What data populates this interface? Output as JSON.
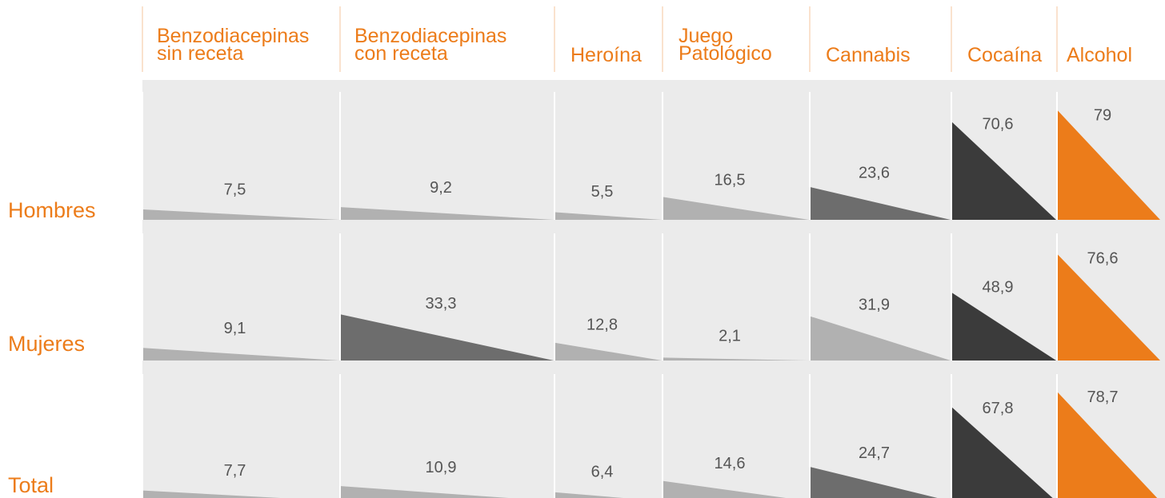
{
  "chart_data": {
    "type": "triangle",
    "categories": [
      "Benzodiacepinas\nsin receta",
      "Benzodiacepinas\ncon receta",
      "Heroína",
      "Juego\nPatológico",
      "Cannabis",
      "Cocaína",
      "Alcohol"
    ],
    "series": [
      {
        "name": "Hombres",
        "values": [
          7.5,
          9.2,
          5.5,
          16.5,
          23.6,
          70.6,
          79
        ],
        "value_labels": [
          "7,5",
          "9,2",
          "5,5",
          "16,5",
          "23,6",
          "70,6",
          "79"
        ],
        "colors": [
          "#b1b1b1",
          "#b1b1b1",
          "#b1b1b1",
          "#b1b1b1",
          "#6d6d6d",
          "#3b3b3b",
          "#ec7c1a"
        ]
      },
      {
        "name": "Mujeres",
        "values": [
          9.1,
          33.3,
          12.8,
          2.1,
          31.9,
          48.9,
          76.6
        ],
        "value_labels": [
          "9,1",
          "33,3",
          "12,8",
          "2,1",
          "31,9",
          "48,9",
          "76,6"
        ],
        "colors": [
          "#b1b1b1",
          "#6d6d6d",
          "#b1b1b1",
          "#b1b1b1",
          "#b1b1b1",
          "#3b3b3b",
          "#ec7c1a"
        ]
      },
      {
        "name": "Total",
        "values": [
          7.7,
          10.9,
          6.4,
          14.6,
          24.7,
          67.8,
          78.7
        ],
        "value_labels": [
          "7,7",
          "10,9",
          "6,4",
          "14,6",
          "24,7",
          "67,8",
          "78,7"
        ],
        "colors": [
          "#b1b1b1",
          "#b1b1b1",
          "#b1b1b1",
          "#b1b1b1",
          "#6d6d6d",
          "#3b3b3b",
          "#ec7c1a"
        ]
      }
    ]
  }
}
